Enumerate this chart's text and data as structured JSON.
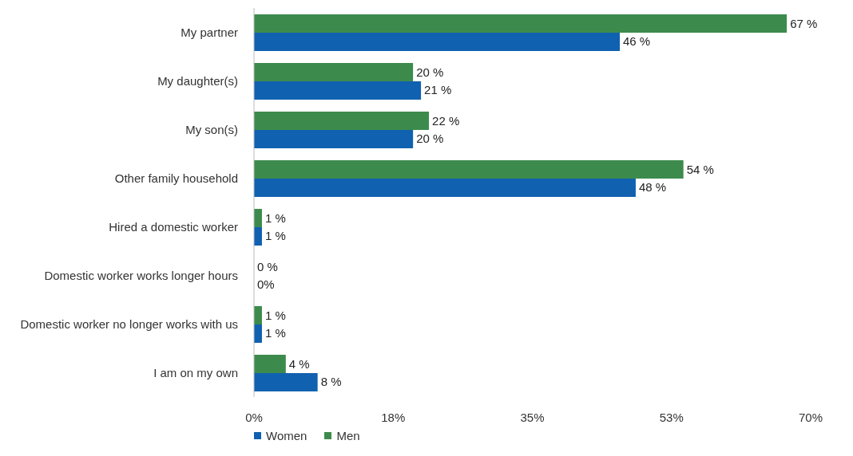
{
  "chart_data": {
    "type": "bar",
    "orientation": "horizontal",
    "categories": [
      "My partner",
      "My daughter(s)",
      "My son(s)",
      "Other family household",
      "Hired a domestic worker",
      "Domestic worker works longer hours",
      "Domestic worker no longer works with us",
      "I am on my own"
    ],
    "series": [
      {
        "name": "Men",
        "color": "#3d8b4c",
        "values": [
          67,
          20,
          22,
          54,
          1,
          0,
          1,
          4
        ],
        "value_labels": [
          "67 %",
          "20 %",
          "22 %",
          "54 %",
          "1 %",
          "0 %",
          "1 %",
          "4 %"
        ]
      },
      {
        "name": "Women",
        "color": "#1061b0",
        "values": [
          46,
          21,
          20,
          48,
          1,
          0,
          1,
          8
        ],
        "value_labels": [
          "46 %",
          "21 %",
          "20 %",
          "48 %",
          "1 %",
          "0%",
          "1 %",
          "8 %"
        ]
      }
    ],
    "xlim": [
      0,
      70
    ],
    "xticks": [
      {
        "value": 0,
        "label": "0%"
      },
      {
        "value": 17.5,
        "label": "18%"
      },
      {
        "value": 35,
        "label": "35%"
      },
      {
        "value": 52.5,
        "label": "53%"
      },
      {
        "value": 70,
        "label": "70%"
      }
    ],
    "grid": false,
    "legend": "bottom left"
  }
}
